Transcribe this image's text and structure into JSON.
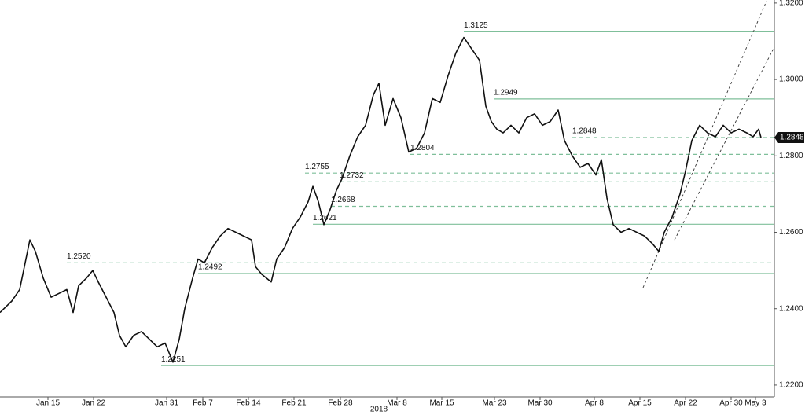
{
  "chart_data": {
    "type": "line",
    "year_label": "2018",
    "xlim": [
      0,
      985
    ],
    "xticks": [
      {
        "value": 61,
        "label": "Jan 15"
      },
      {
        "value": 119,
        "label": "Jan 22"
      },
      {
        "value": 212,
        "label": "Jan 31"
      },
      {
        "value": 258,
        "label": "Feb 7"
      },
      {
        "value": 316,
        "label": "Feb 14"
      },
      {
        "value": 374,
        "label": "Feb 21"
      },
      {
        "value": 433,
        "label": "Feb 28"
      },
      {
        "value": 505,
        "label": "Mar 8"
      },
      {
        "value": 562,
        "label": "Mar 15"
      },
      {
        "value": 629,
        "label": "Mar 23"
      },
      {
        "value": 687,
        "label": "Mar 30"
      },
      {
        "value": 756,
        "label": "Apr 8"
      },
      {
        "value": 814,
        "label": "Apr 15"
      },
      {
        "value": 872,
        "label": "Apr 22"
      },
      {
        "value": 930,
        "label": "Apr 30"
      },
      {
        "value": 961,
        "label": "May 3"
      }
    ],
    "ylim": [
      1.2169,
      1.3208
    ],
    "yticks": [
      {
        "value": 1.22,
        "label": "1.2200"
      },
      {
        "value": 1.24,
        "label": "1.2400"
      },
      {
        "value": 1.26,
        "label": "1.2600"
      },
      {
        "value": 1.28,
        "label": "1.2800"
      },
      {
        "value": 1.3,
        "label": "1.3000"
      },
      {
        "value": 1.32,
        "label": "1.3200"
      }
    ],
    "series": [
      {
        "color": "#111111",
        "x": [
          0,
          15,
          25,
          38,
          45,
          55,
          65,
          75,
          85,
          93,
          100,
          110,
          118,
          125,
          135,
          145,
          152,
          160,
          170,
          180,
          190,
          200,
          210,
          220,
          228,
          235,
          245,
          252,
          260,
          270,
          280,
          290,
          300,
          310,
          320,
          325,
          333,
          345,
          352,
          362,
          372,
          382,
          392,
          398,
          405,
          412,
          420,
          428,
          435,
          445,
          455,
          465,
          475,
          482,
          490,
          500,
          510,
          520,
          530,
          540,
          550,
          560,
          570,
          580,
          590,
          600,
          610,
          618,
          625,
          632,
          640,
          650,
          660,
          670,
          680,
          690,
          700,
          710,
          718,
          728,
          738,
          748,
          758,
          765,
          772,
          780,
          790,
          800,
          810,
          820,
          830,
          838,
          845,
          855,
          865,
          872,
          880,
          890,
          900,
          910,
          920,
          930,
          940,
          950,
          958,
          965,
          968
        ],
        "values": [
          1.239,
          1.242,
          1.245,
          1.258,
          1.255,
          1.248,
          1.243,
          1.244,
          1.245,
          1.239,
          1.246,
          1.248,
          1.25,
          1.247,
          1.243,
          1.239,
          1.233,
          1.23,
          1.233,
          1.234,
          1.232,
          1.23,
          1.231,
          1.226,
          1.232,
          1.24,
          1.248,
          1.253,
          1.252,
          1.256,
          1.259,
          1.261,
          1.26,
          1.259,
          1.258,
          1.251,
          1.249,
          1.247,
          1.253,
          1.256,
          1.261,
          1.264,
          1.268,
          1.272,
          1.268,
          1.262,
          1.266,
          1.271,
          1.274,
          1.28,
          1.285,
          1.288,
          1.296,
          1.299,
          1.288,
          1.295,
          1.29,
          1.281,
          1.282,
          1.286,
          1.295,
          1.294,
          1.301,
          1.307,
          1.311,
          1.308,
          1.305,
          1.293,
          1.289,
          1.287,
          1.286,
          1.288,
          1.286,
          1.29,
          1.291,
          1.288,
          1.289,
          1.292,
          1.284,
          1.28,
          1.277,
          1.278,
          1.275,
          1.279,
          1.269,
          1.262,
          1.26,
          1.261,
          1.26,
          1.259,
          1.257,
          1.255,
          1.26,
          1.264,
          1.27,
          1.276,
          1.284,
          1.288,
          1.286,
          1.285,
          1.288,
          1.286,
          1.287,
          1.286,
          1.285,
          1.287,
          1.2848
        ]
      }
    ],
    "last_value": {
      "value": 1.2848,
      "label": "1.2848"
    },
    "levels": [
      {
        "value": 1.3125,
        "label": "1.3125",
        "style": "solid",
        "from": 590
      },
      {
        "value": 1.2949,
        "label": "1.2949",
        "style": "solid",
        "from": 628
      },
      {
        "value": 1.2848,
        "label": "1.2848",
        "style": "dashed",
        "from": 728
      },
      {
        "value": 1.2804,
        "label": "1.2804",
        "style": "dashed",
        "from": 522
      },
      {
        "value": 1.2755,
        "label": "1.2755",
        "style": "dashed",
        "from": 388
      },
      {
        "value": 1.2732,
        "label": "1.2732",
        "style": "dashed",
        "from": 432
      },
      {
        "value": 1.2668,
        "label": "1.2668",
        "style": "dashed",
        "from": 421
      },
      {
        "value": 1.2621,
        "label": "1.2621",
        "style": "solid",
        "from": 398
      },
      {
        "value": 1.252,
        "label": "1.2520",
        "style": "dashed",
        "from": 85
      },
      {
        "value": 1.2492,
        "label": "1.2492",
        "style": "solid",
        "from": 252
      },
      {
        "value": 1.2251,
        "label": "1.2251",
        "style": "solid",
        "from": 205
      }
    ],
    "level_color": "#7fbf9a",
    "trendlines": [
      {
        "x": [
          818,
          975
        ],
        "values": [
          1.2455,
          1.3205
        ]
      },
      {
        "x": [
          858,
          985
        ],
        "values": [
          1.258,
          1.3085
        ]
      }
    ]
  }
}
